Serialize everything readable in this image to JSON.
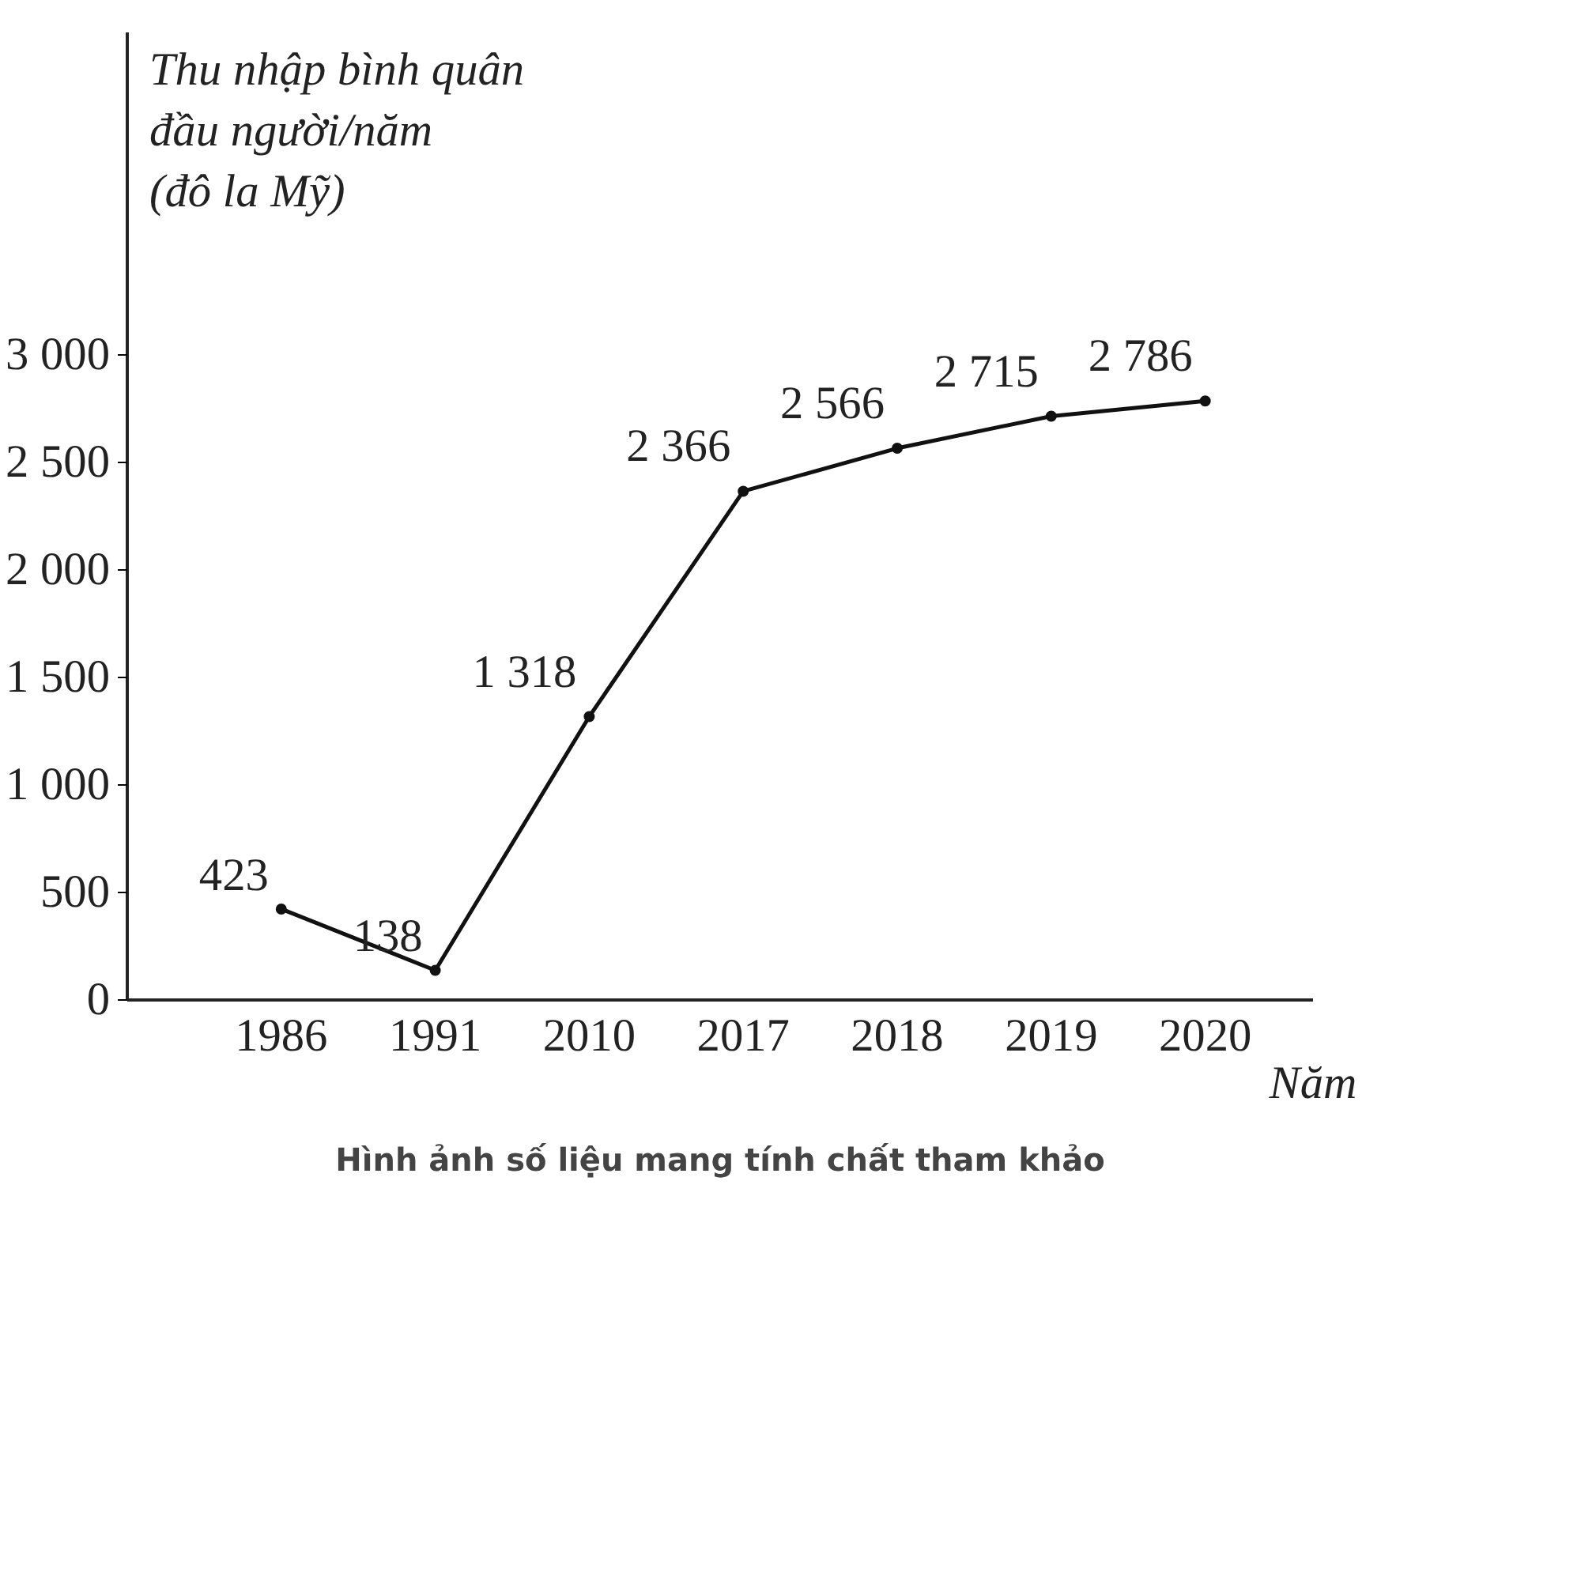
{
  "chart_data": {
    "type": "line",
    "ylabel": "Thu nhập bình quân\nđầu người/năm\n(đô la Mỹ)",
    "xlabel": "Năm",
    "categories": [
      "1986",
      "1991",
      "2010",
      "2017",
      "2018",
      "2019",
      "2020"
    ],
    "values": [
      423,
      138,
      1318,
      2366,
      2566,
      2715,
      2786
    ],
    "value_labels": [
      "423",
      "138",
      "1 318",
      "2 366",
      "2 566",
      "2 715",
      "2 786"
    ],
    "color": "#111111",
    "marker": "circle",
    "grid": false,
    "ylim": [
      0,
      4500
    ],
    "yticks": [
      0,
      500,
      {
        "value": 1000,
        "label": "1 000"
      },
      {
        "value": 1500,
        "label": "1 500"
      },
      {
        "value": 2000,
        "label": "2 000"
      },
      {
        "value": 2500,
        "label": "2 500"
      },
      {
        "value": 3000,
        "label": "3 000"
      }
    ],
    "annotations": [
      "Hình ảnh số liệu mang tính chất tham khảo"
    ]
  }
}
